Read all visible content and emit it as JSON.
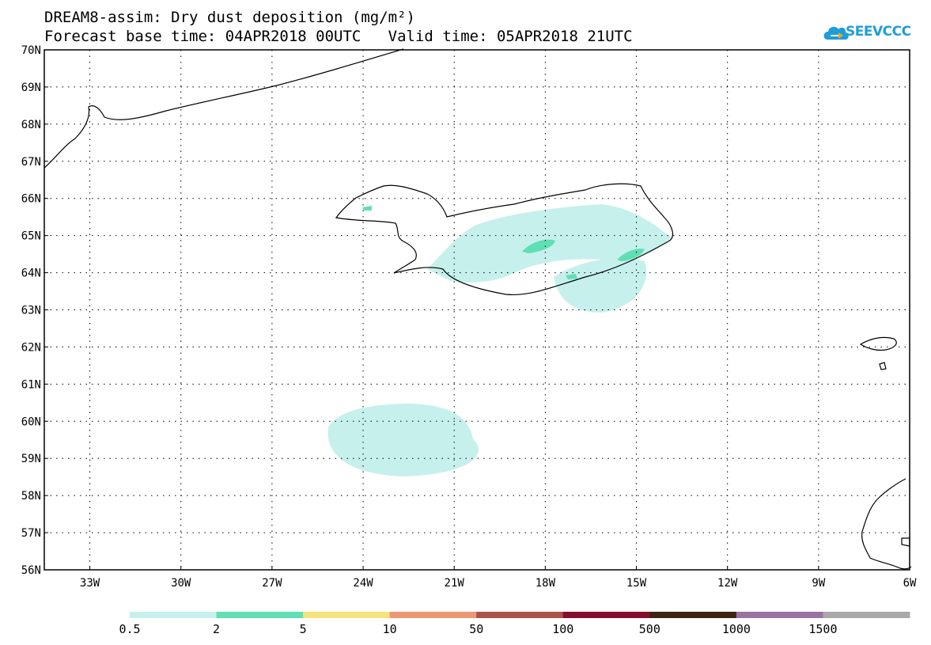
{
  "title": {
    "line1": "DREAM8-assim: Dry dust deposition (mg/m²)",
    "line2": "Forecast base time: 04APR2018 00UTC   Valid time: 05APR2018 21UTC"
  },
  "logo": {
    "text": "SEEVCCC",
    "icon": "cloud-icon",
    "color": "#1e9ddb"
  },
  "map": {
    "lat_range": [
      56,
      70
    ],
    "lon_range": [
      -34.5,
      -6
    ],
    "lat_labels": [
      "70N",
      "69N",
      "68N",
      "67N",
      "66N",
      "65N",
      "64N",
      "63N",
      "62N",
      "61N",
      "60N",
      "59N",
      "58N",
      "57N",
      "56N"
    ],
    "lon_labels": [
      "33W",
      "30W",
      "27W",
      "24W",
      "21W",
      "18W",
      "15W",
      "12W",
      "9W",
      "6W"
    ],
    "grid": "dotted"
  },
  "colorbar": {
    "colors": [
      "#c6f0ec",
      "#5fdfb4",
      "#f6e37a",
      "#ee9873",
      "#a9534b",
      "#850d2e",
      "#3b2412",
      "#9873a4",
      "#a9a9a9"
    ],
    "labels": [
      "0.5",
      "2",
      "5",
      "10",
      "50",
      "100",
      "500",
      "1000",
      "1500"
    ]
  }
}
